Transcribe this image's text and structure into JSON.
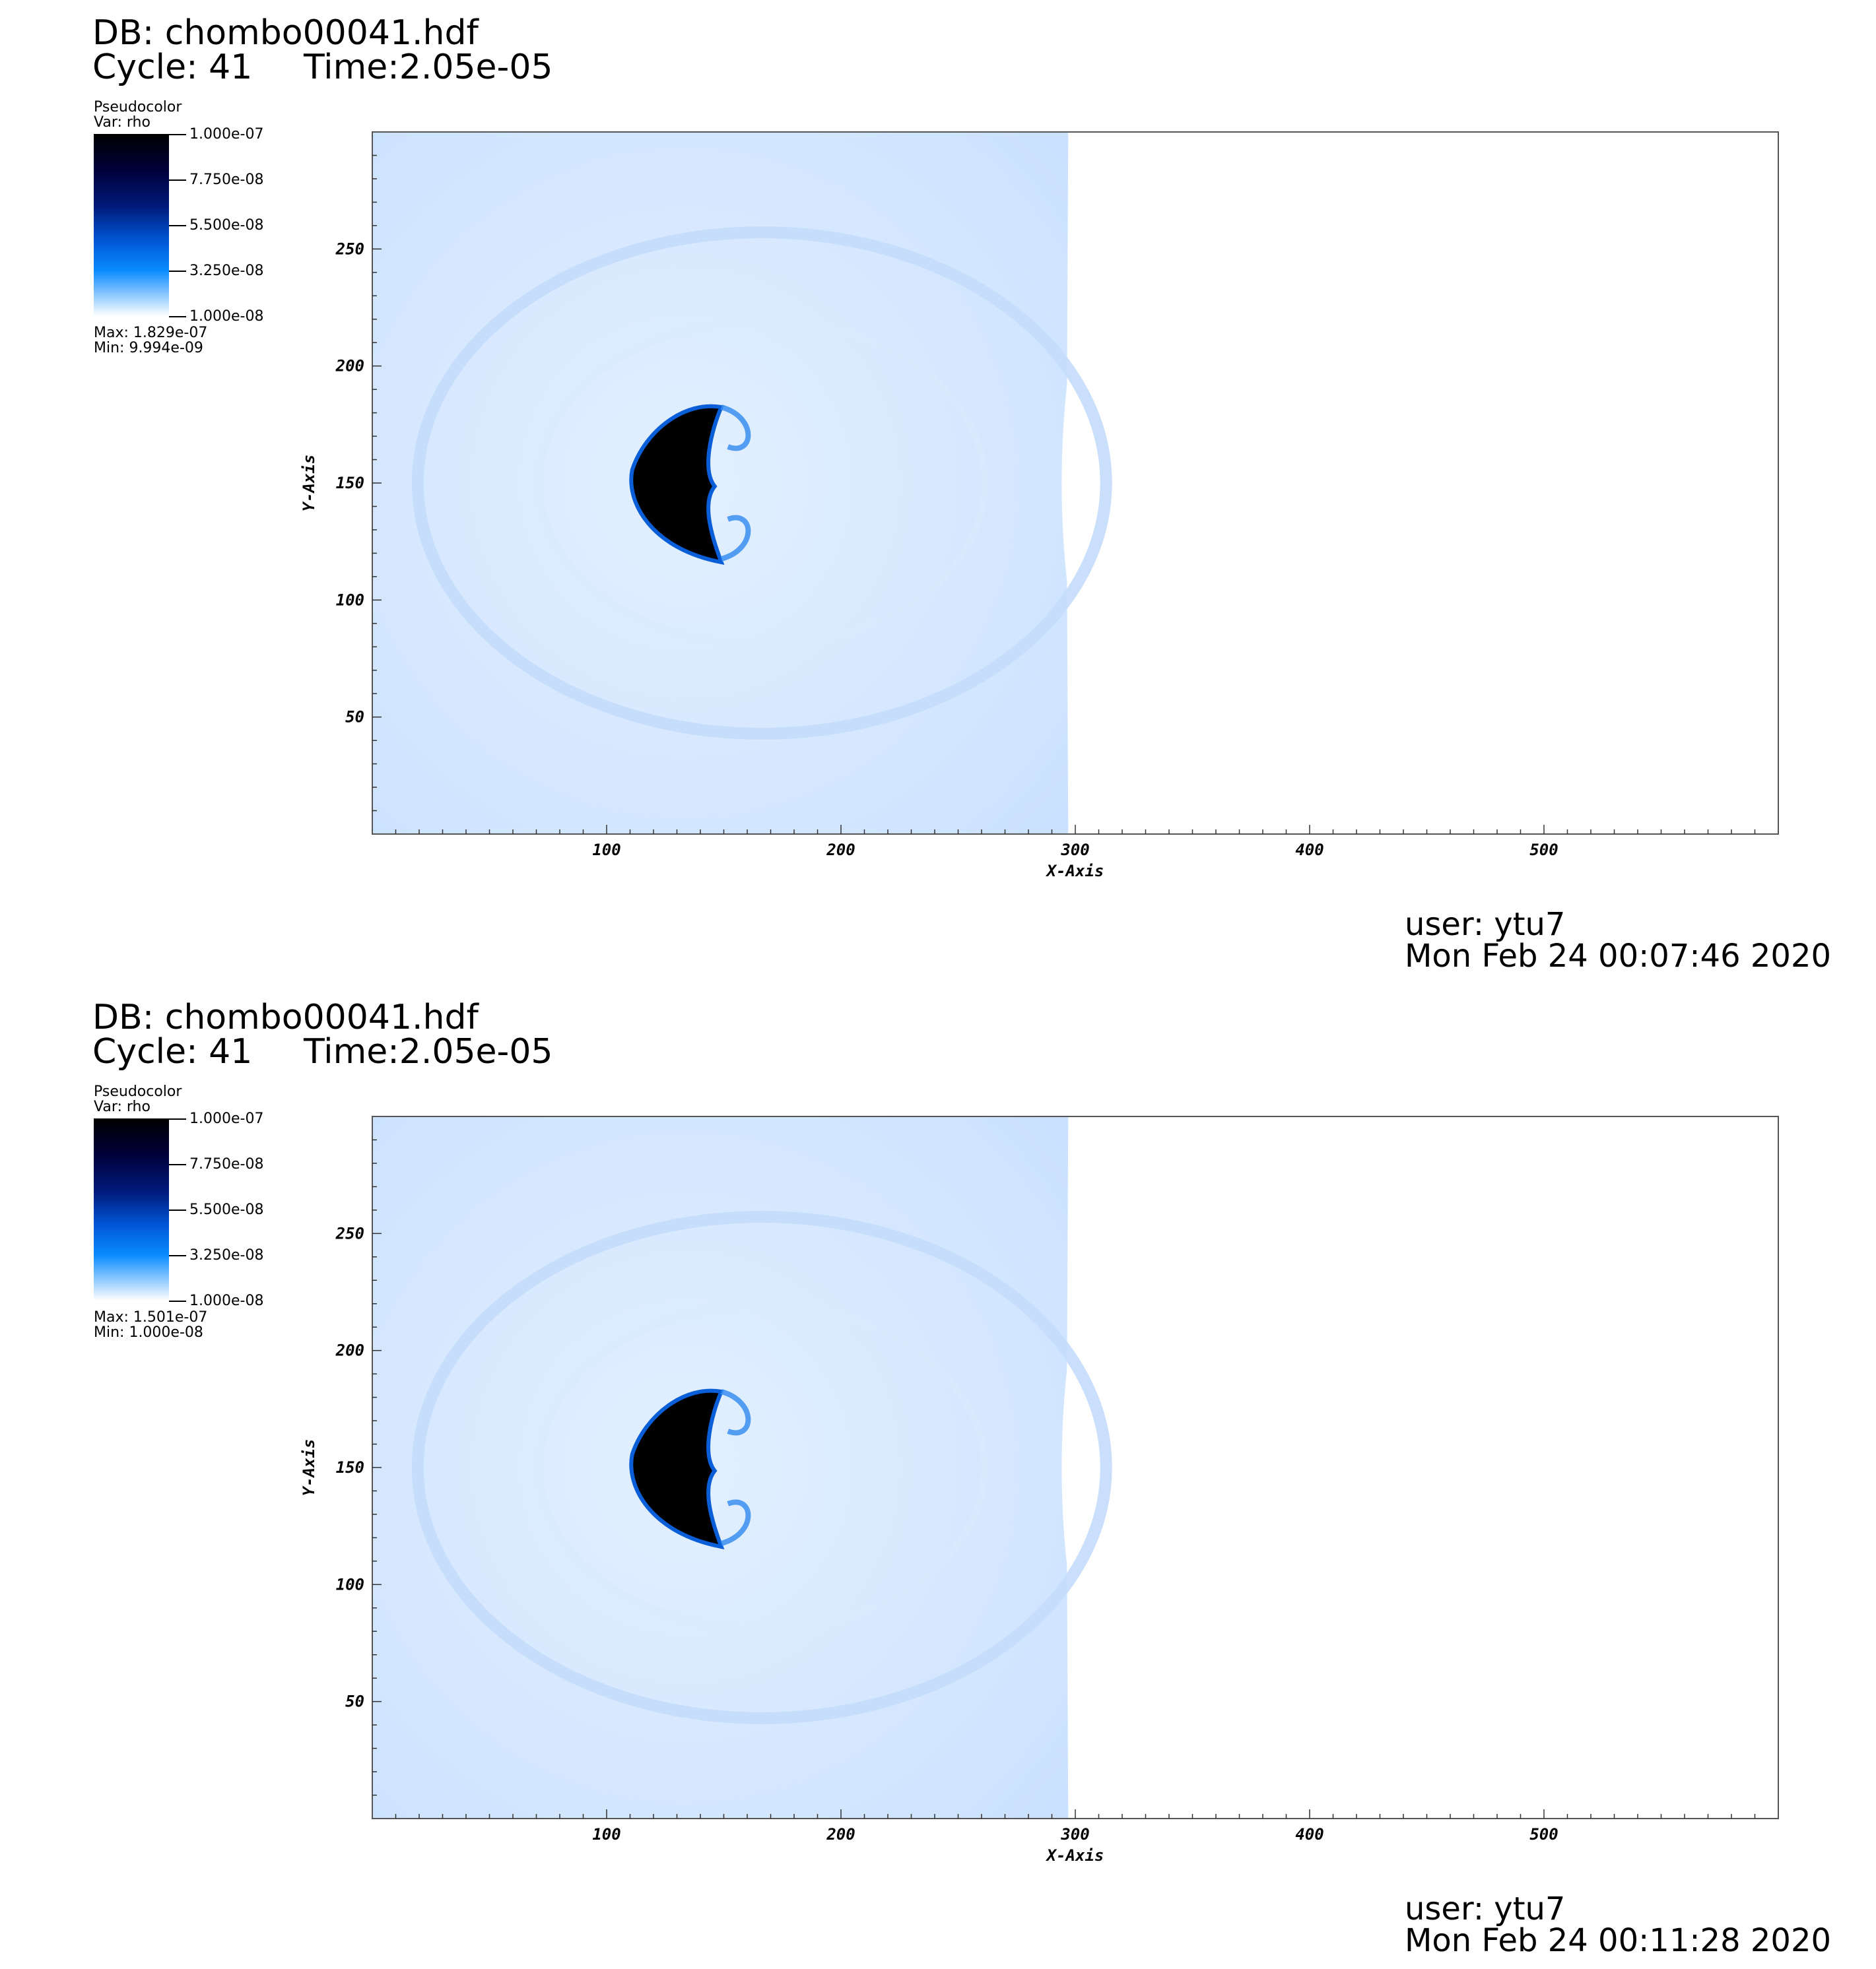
{
  "panels": [
    {
      "db_title": "DB: chombo00041.hdf",
      "cycle": "Cycle: 41",
      "time": "Time:2.05e-05",
      "legend": {
        "plot_type": "Pseudocolor",
        "var": "Var: rho",
        "ticks": [
          "1.000e-07",
          "7.750e-08",
          "5.500e-08",
          "3.250e-08",
          "1.000e-08"
        ],
        "max": "Max:  1.829e-07",
        "min": "Min:  9.994e-09"
      },
      "user": "user: ytu7",
      "date": "Mon Feb 24 00:07:46 2020"
    },
    {
      "db_title": "DB: chombo00041.hdf",
      "cycle": "Cycle: 41",
      "time": "Time:2.05e-05",
      "legend": {
        "plot_type": "Pseudocolor",
        "var": "Var: rho",
        "ticks": [
          "1.000e-07",
          "7.750e-08",
          "5.500e-08",
          "3.250e-08",
          "1.000e-08"
        ],
        "max": "Max:  1.501e-07",
        "min": "Min:  1.000e-08"
      },
      "user": "user: ytu7",
      "date": "Mon Feb 24 00:11:28 2020"
    }
  ],
  "chart_data": [
    {
      "type": "heatmap",
      "variable": "rho",
      "colorscale": [
        "#000000",
        "#001a7a",
        "#0a8bff",
        "#ffffff"
      ],
      "clim": [
        1e-08,
        1e-07
      ],
      "xlabel": "X-Axis",
      "ylabel": "Y-Axis",
      "xlim": [
        0,
        600
      ],
      "ylim": [
        0,
        300
      ],
      "xticks": [
        100,
        200,
        300,
        400,
        500
      ],
      "yticks": [
        50,
        100,
        150,
        200,
        250
      ],
      "data_extent_x": [
        0,
        297
      ],
      "dense_blob_center": [
        125,
        150
      ],
      "data_max": 1.829e-07,
      "data_min": 9.994e-09
    },
    {
      "type": "heatmap",
      "variable": "rho",
      "colorscale": [
        "#000000",
        "#001a7a",
        "#0a8bff",
        "#ffffff"
      ],
      "clim": [
        1e-08,
        1e-07
      ],
      "xlabel": "X-Axis",
      "ylabel": "Y-Axis",
      "xlim": [
        0,
        600
      ],
      "ylim": [
        0,
        300
      ],
      "xticks": [
        100,
        200,
        300,
        400,
        500
      ],
      "yticks": [
        50,
        100,
        150,
        200,
        250
      ],
      "data_extent_x": [
        0,
        297
      ],
      "dense_blob_center": [
        125,
        150
      ],
      "data_max": 1.501e-07,
      "data_min": 1e-08
    }
  ]
}
